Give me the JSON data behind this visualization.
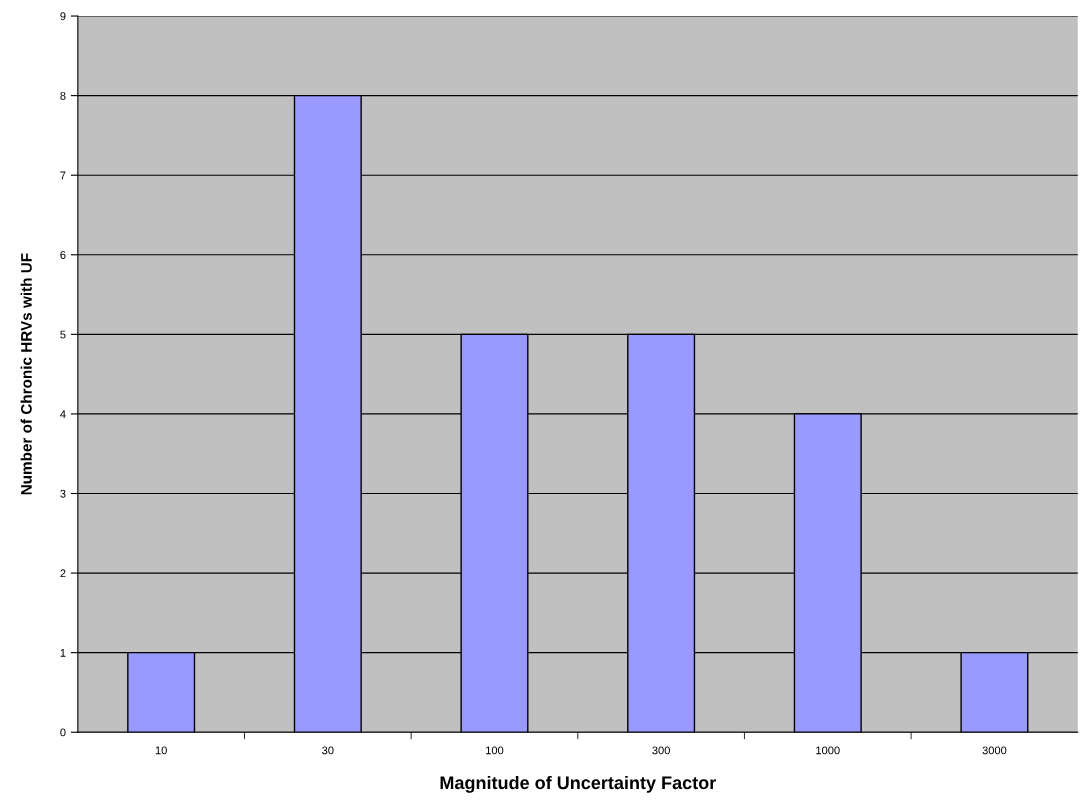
{
  "chart_data": {
    "type": "bar",
    "xlabel": "Magnitude of Uncertainty Factor",
    "ylabel": "Number of Chronic HRVs with UF",
    "categories": [
      "10",
      "30",
      "100",
      "300",
      "1000",
      "3000"
    ],
    "values": [
      1,
      8,
      5,
      5,
      4,
      1
    ],
    "color": "#9999ff",
    "ylim": [
      0,
      9
    ],
    "yticks": [
      0,
      1,
      2,
      3,
      4,
      5,
      6,
      7,
      8,
      9
    ],
    "grid": "y",
    "legend": false
  }
}
